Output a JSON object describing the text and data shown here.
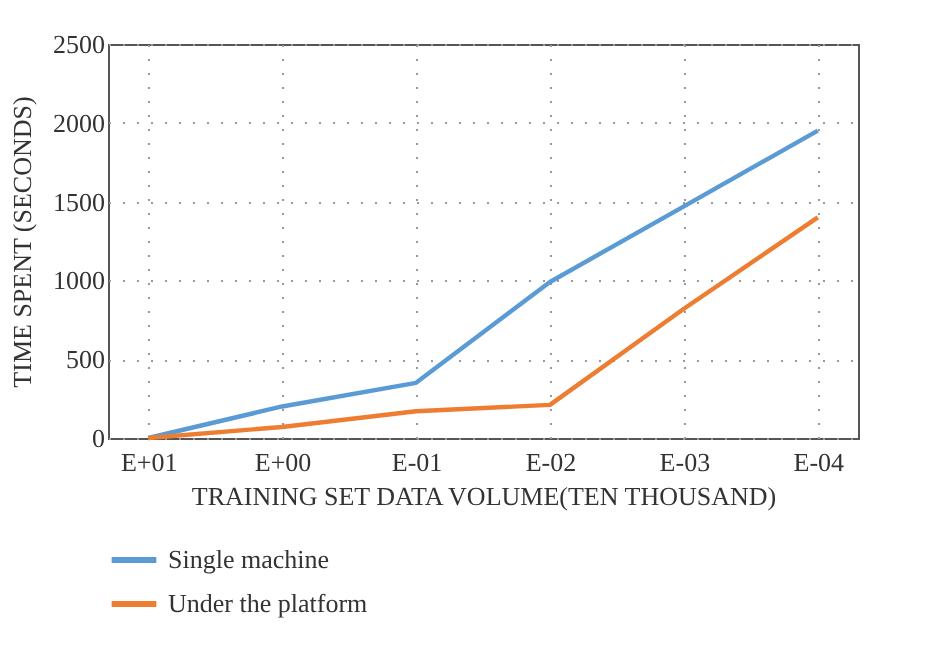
{
  "chart_data": {
    "type": "line",
    "xlabel": "TRAINING SET DATA VOLUME(TEN THOUSAND)",
    "ylabel": "TIME SPENT (SECONDS)",
    "categories": [
      "E+01",
      "E+00",
      "E-01",
      "E-02",
      "E-03",
      "E-04"
    ],
    "series": [
      {
        "name": "Single machine",
        "color": "#5b9bd5",
        "values": [
          0,
          200,
          350,
          990,
          1470,
          1950
        ]
      },
      {
        "name": "Under the platform",
        "color": "#ed7d31",
        "values": [
          0,
          70,
          170,
          210,
          820,
          1400
        ]
      }
    ],
    "ylim": [
      0,
      2500
    ],
    "yticks": [
      0,
      500,
      1000,
      1500,
      2000,
      2500
    ],
    "grid": true,
    "legend": "bottom",
    "line_style": "solid"
  }
}
